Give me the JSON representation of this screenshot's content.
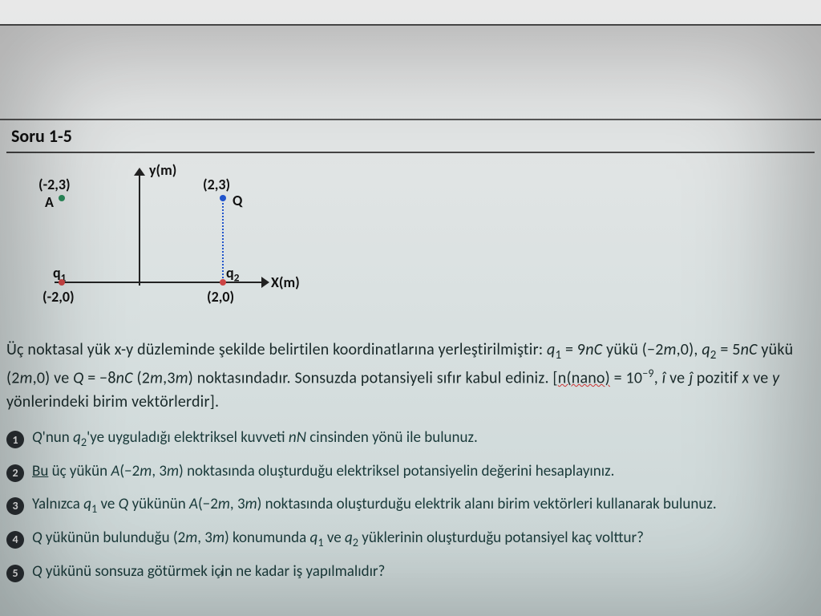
{
  "title": "Soru 1-5",
  "diagram": {
    "y_axis_label": "y(m)",
    "x_axis_label": "X(m)",
    "points": {
      "A": {
        "label": "A",
        "coord_label": "(-2,3)",
        "color": "#2a8a5a"
      },
      "Q": {
        "label": "Q",
        "coord_label": "(2,3)",
        "color": "#2255cc"
      },
      "q1": {
        "label": "q₁",
        "coord_label": "(-2,0)",
        "color": "#cc4444"
      },
      "q2": {
        "label": "q₂",
        "coord_label": "(2,0)",
        "color": "#cc4444"
      }
    }
  },
  "intro_html": "Üç noktasal yük x-y düzleminde şekilde belirtilen koordinatlarına yerleştirilmiştir: <span class='ital'>q</span><span class='sub'>1</span> = 9<span class='ital'>nC</span> yükü (−2<span class='ital'>m</span>,0), <span class='ital'>q</span><span class='sub'>2</span> = 5<span class='ital'>nC</span> yükü (2<span class='ital'>m</span>,0) ve <span class='ital'>Q</span> = −8<span class='ital'>nC</span> (2<span class='ital'>m</span>,3<span class='ital'>m</span>) noktasındadır. Sonsuzda potansiyeli sıfır kabul ediniz. [<span class='redwave'>n(nano)</span> = 10<span class='sup'>−9</span>, <span class='ital'>î</span> ve <span class='ital'>ĵ</span> pozitif <span class='ital'>x</span> ve <span class='ital'>y</span> yönlerindeki birim vektörlerdir].",
  "questions": [
    {
      "n": "1",
      "html": "<span class='ital'>Q</span>'nun <span class='ital'>q</span><span class='sub'>2</span>'ye uyguladığı elektriksel kuvveti <span class='ital'>nN</span> cinsinden yönü ile bulunuz."
    },
    {
      "n": "2",
      "html": "<span class='underline'>Bu</span> üç yükün <span class='ital'>A</span>(−2<span class='ital'>m</span>, 3<span class='ital'>m</span>) noktasında oluşturduğu elektriksel potansiyelin değerini hesaplayınız."
    },
    {
      "n": "3",
      "html": "Yalnızca <span class='ital'>q</span><span class='sub'>1</span> ve <span class='ital'>Q</span> yükünün <span class='ital'>A</span>(−2<span class='ital'>m</span>, 3<span class='ital'>m</span>) noktasında oluşturduğu elektrik alanı birim vektörleri kullanarak bulunuz."
    },
    {
      "n": "4",
      "html": "<span class='ital'>Q</span> yükünün bulunduğu (2<span class='ital'>m</span>, 3<span class='ital'>m</span>) konumunda <span class='ital'>q</span><span class='sub'>1</span> ve <span class='ital'>q</span><span class='sub'>2</span> yüklerinin oluşturduğu potansiyel kaç volttur?"
    },
    {
      "n": "5",
      "html": "<span class='ital'>Q</span> yükünü sonsuza götürmek iç<span style='position:relative'>i<span style='position:absolute;left:-3px;top:8px;font-size:10px'>↟</span></span>n ne kadar iş yapılmalıdır?"
    }
  ],
  "colors": {
    "text": "#1a2a2a",
    "badge_bg": "#2a2f33",
    "badge_fg": "#f0f0f0",
    "axis": "#222222"
  }
}
